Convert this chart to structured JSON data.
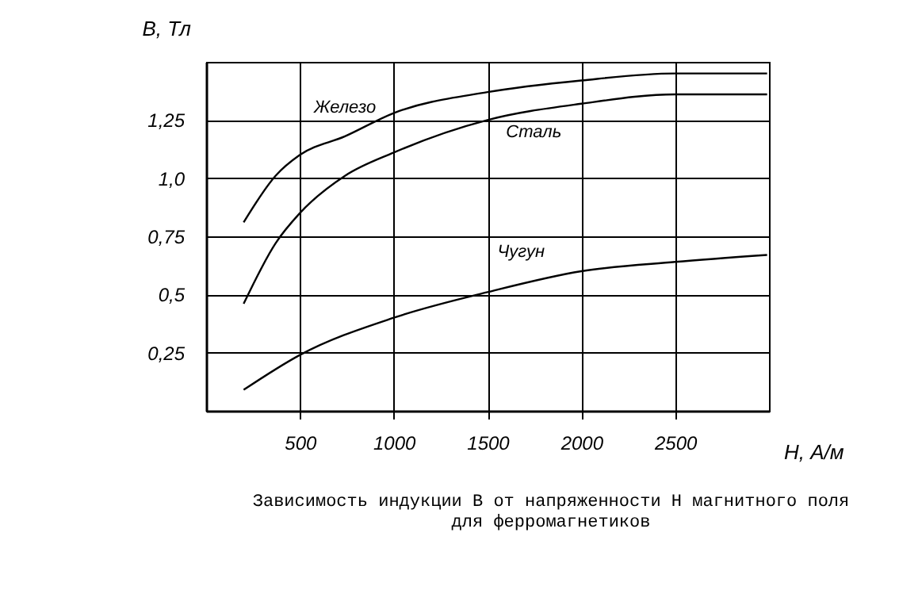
{
  "chart_data": {
    "type": "line",
    "title": "Зависимость индукции B от напряженности H магнитного поля для ферромагнетиков",
    "xlabel": "H,  А/м",
    "ylabel": "B, Тл",
    "xlim": [
      0,
      3000
    ],
    "xticks": [
      500,
      1000,
      1500,
      2000,
      2500
    ],
    "ylim": [
      0,
      1.5
    ],
    "yticks": [
      {
        "value": 0.25,
        "label": "0,25"
      },
      {
        "value": 0.5,
        "label": "0,5"
      },
      {
        "value": 0.75,
        "label": "0,75"
      },
      {
        "value": 1.0,
        "label": "1,0"
      },
      {
        "value": 1.25,
        "label": "1,25"
      }
    ],
    "grid": true,
    "line_style": "solid",
    "series": [
      {
        "name": "Железо",
        "color": "#000000",
        "x": [
          200,
          370,
          500,
          740,
          1000,
          1500,
          2000,
          2500,
          2990
        ],
        "values": [
          0.81,
          1.01,
          1.1,
          1.18,
          1.28,
          1.37,
          1.42,
          1.45,
          1.45
        ]
      },
      {
        "name": "Сталь",
        "color": "#000000",
        "x": [
          200,
          370,
          500,
          740,
          1000,
          1500,
          2000,
          2500,
          2990
        ],
        "values": [
          0.46,
          0.72,
          0.85,
          1.01,
          1.11,
          1.25,
          1.32,
          1.36,
          1.36
        ]
      },
      {
        "name": "Чугун",
        "color": "#000000",
        "x": [
          200,
          500,
          1000,
          1500,
          2000,
          2500,
          2990
        ],
        "values": [
          0.09,
          0.24,
          0.4,
          0.51,
          0.6,
          0.64,
          0.67
        ]
      }
    ]
  }
}
